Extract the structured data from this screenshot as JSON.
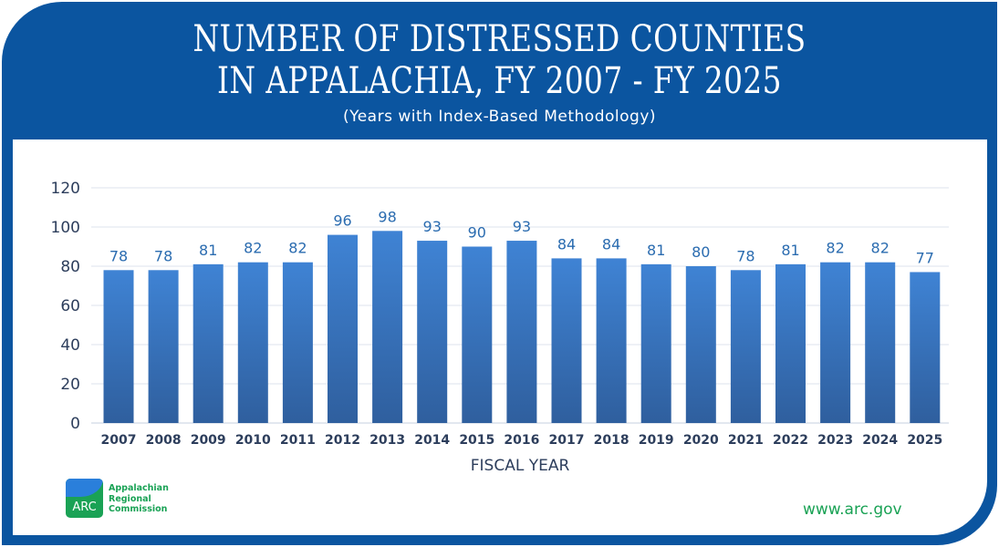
{
  "header": {
    "title_line1": "NUMBER OF DISTRESSED COUNTIES",
    "title_line2": "IN APPALACHIA, FY 2007 - FY 2025",
    "subtitle": "(Years with Index-Based Methodology)"
  },
  "chart_data": {
    "type": "bar",
    "title": "NUMBER OF DISTRESSED COUNTIES IN APPALACHIA, FY 2007 - FY 2025",
    "subtitle": "(Years with Index-Based Methodology)",
    "xlabel": "FISCAL YEAR",
    "ylabel": "",
    "categories": [
      "2007",
      "2008",
      "2009",
      "2010",
      "2011",
      "2012",
      "2013",
      "2014",
      "2015",
      "2016",
      "2017",
      "2018",
      "2019",
      "2020",
      "2021",
      "2022",
      "2023",
      "2024",
      "2025"
    ],
    "values": [
      78,
      78,
      81,
      82,
      82,
      96,
      98,
      93,
      90,
      93,
      84,
      84,
      81,
      80,
      78,
      81,
      82,
      82,
      77
    ],
    "ylim": [
      0,
      120
    ],
    "yticks": [
      0,
      20,
      40,
      60,
      80,
      100,
      120
    ],
    "grid": true,
    "data_labels": true,
    "colors": {
      "bar_top": "#3f83d4",
      "bar_bottom": "#2f5f9e",
      "label": "#2b6cb0",
      "axis_text": "#2d3e5c"
    }
  },
  "footer": {
    "logo_text": "ARC",
    "org_line1": "Appalachian",
    "org_line2": "Regional",
    "org_line3": "Commission",
    "url": "www.arc.gov"
  },
  "colors": {
    "frame": "#0b55a0",
    "brand_green": "#1aa255"
  }
}
